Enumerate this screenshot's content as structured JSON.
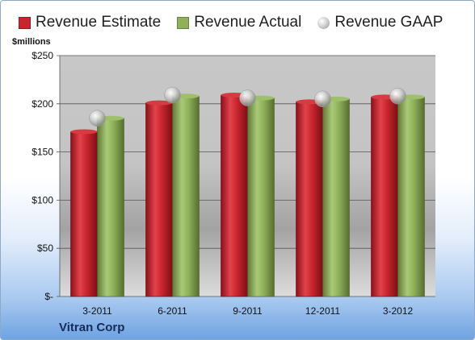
{
  "legend": {
    "estimate": "Revenue Estimate",
    "actual": "Revenue Actual",
    "gaap": "Revenue GAAP"
  },
  "unit_label": "$millions",
  "company": "Vitran Corp",
  "colors": {
    "estimate": "#c9252e",
    "actual": "#8fb15a",
    "gaap": "#c6c6c6"
  },
  "chart_data": {
    "type": "bar",
    "title": "",
    "xlabel": "",
    "ylabel": "$millions",
    "categories": [
      "3-2011",
      "6-2011",
      "9-2011",
      "12-2011",
      "3-2012"
    ],
    "series": [
      {
        "name": "Revenue Estimate",
        "type": "bar",
        "values": [
          171,
          201,
          209,
          202,
          207
        ]
      },
      {
        "name": "Revenue Actual",
        "type": "bar",
        "values": [
          185,
          208,
          206,
          205,
          207
        ]
      },
      {
        "name": "Revenue GAAP",
        "type": "bubble",
        "values": [
          185,
          209,
          206,
          205,
          208
        ]
      }
    ],
    "ylim": [
      0,
      250
    ],
    "yticks": [
      0,
      50,
      100,
      150,
      200,
      250
    ],
    "ytick_labels": [
      "$-",
      "$50",
      "$100",
      "$150",
      "$200",
      "$250"
    ],
    "grid": true,
    "legend_position": "top"
  }
}
